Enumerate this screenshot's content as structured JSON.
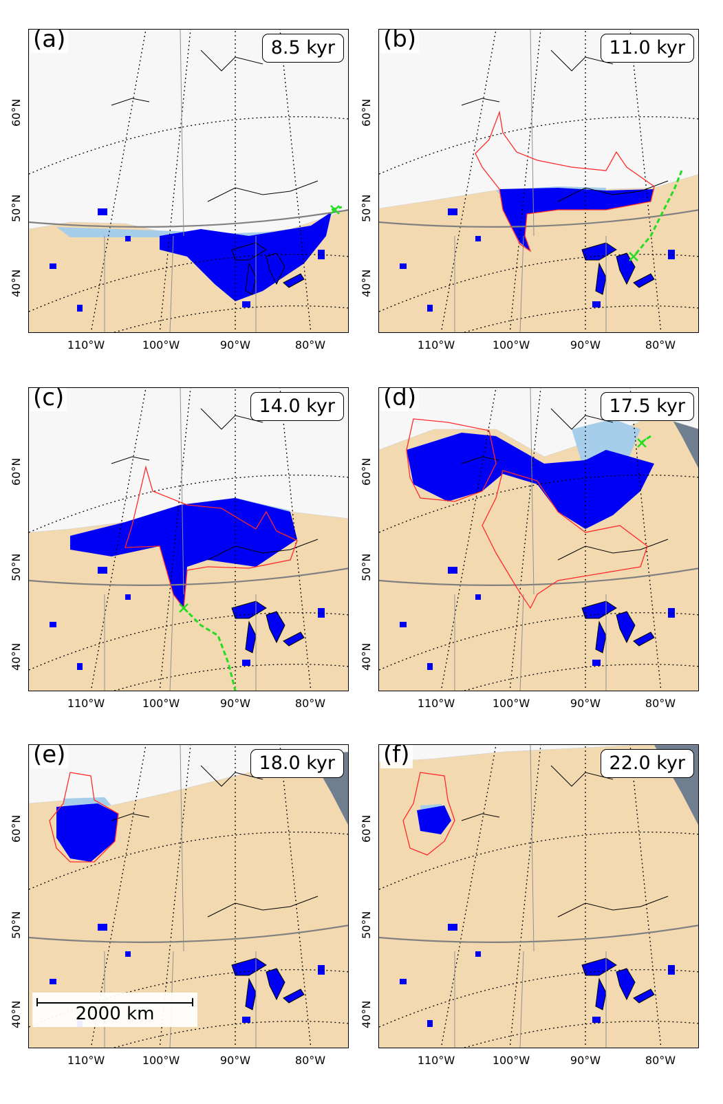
{
  "panels": [
    {
      "label": "(a)",
      "time": "8.5 kyr"
    },
    {
      "label": "(b)",
      "time": "11.0 kyr"
    },
    {
      "label": "(c)",
      "time": "14.0 kyr"
    },
    {
      "label": "(d)",
      "time": "17.5 kyr"
    },
    {
      "label": "(e)",
      "time": "18.0 kyr"
    },
    {
      "label": "(f)",
      "time": "22.0 kyr"
    }
  ],
  "longitude_labels": [
    "110°W",
    "100°W",
    "90°W",
    "80°W"
  ],
  "latitude_labels": [
    "40°N",
    "50°N",
    "60°N"
  ],
  "scale_bar": {
    "label": "2000 km"
  },
  "legend_colors": {
    "ice_sheet": "#f7f7f7",
    "land": "#f2d9b0",
    "ocean": "#6f7f8f",
    "proglacial_lake": "#0000f5",
    "shallow_lake": "#a6cdea",
    "lake_outline": "#ff2a2a",
    "outlet_path": "#22dd22"
  }
}
